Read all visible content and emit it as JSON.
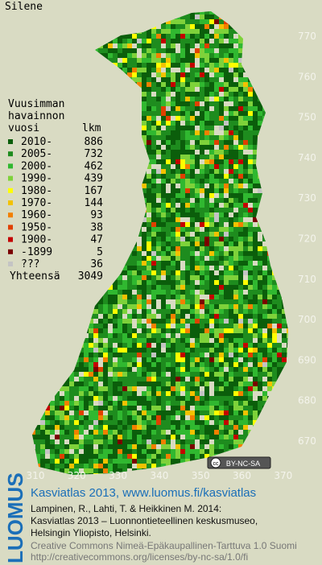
{
  "title": "Silene",
  "legend": {
    "heading": [
      "Vuusimman",
      "havainnon",
      "vuosi"
    ],
    "count_heading": "lkm",
    "items": [
      {
        "label": "2010-",
        "count": 886,
        "color": "#0b5e0b"
      },
      {
        "label": "2005-",
        "count": 732,
        "color": "#1e8c1e"
      },
      {
        "label": "2000-",
        "count": 462,
        "color": "#30b830"
      },
      {
        "label": "1990-",
        "count": 439,
        "color": "#7ed23a"
      },
      {
        "label": "1980-",
        "count": 167,
        "color": "#ffff00"
      },
      {
        "label": "1970-",
        "count": 144,
        "color": "#f2c200"
      },
      {
        "label": "1960-",
        "count": 93,
        "color": "#f28000"
      },
      {
        "label": "1950-",
        "count": 38,
        "color": "#e04000"
      },
      {
        "label": "1900-",
        "count": 47,
        "color": "#c40000"
      },
      {
        "label": "-1899",
        "count": 5,
        "color": "#7a0000"
      },
      {
        "label": "???",
        "count": 36,
        "color": "#c4c4c4"
      }
    ],
    "total_label": "Yhteensä",
    "total": 3049
  },
  "axes": {
    "xticks": [
      310,
      320,
      330,
      340,
      350,
      360,
      370
    ],
    "yticks": [
      670,
      680,
      690,
      700,
      710,
      720,
      730,
      740,
      750,
      760,
      770
    ]
  },
  "badge": "BY-NC-SA",
  "footer": {
    "logo": "LUOMUS",
    "headline": "Kasviatlas 2013, www.luomus.fi/kasviatlas",
    "citation": [
      "Lampinen, R., Lahti, T. & Heikkinen M. 2014:",
      "Kasviatlas 2013 – Luonnontieteellinen keskusmuseo,",
      "Helsingin Yliopisto, Helsinki."
    ],
    "license": [
      "Creative Commons Nimeä-Epäkaupallinen-Tarttuva 1.0 Suomi",
      "http://creativecommons.org/licenses/by-nc-sa/1.0/fi"
    ]
  }
}
